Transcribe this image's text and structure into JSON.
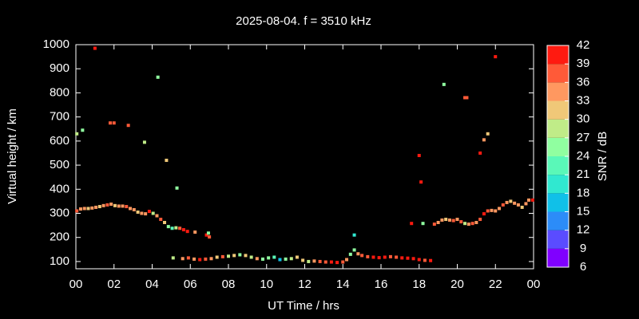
{
  "chart_data": {
    "type": "scatter",
    "title": "2025-08-04. f = 3510 kHz",
    "x_label": "UT Time / hrs",
    "y_label": "Virtual height / km",
    "colorbar_label": "SNR / dB",
    "xlim": [
      0,
      24
    ],
    "xticks": [
      {
        "value": 0,
        "label": "00"
      },
      {
        "value": 2,
        "label": "02"
      },
      {
        "value": 4,
        "label": "04"
      },
      {
        "value": 6,
        "label": "06"
      },
      {
        "value": 8,
        "label": "08"
      },
      10,
      12,
      14,
      16,
      18,
      20,
      22,
      {
        "value": 24,
        "label": "00"
      }
    ],
    "ylim": [
      70,
      1000
    ],
    "yticks": [
      100,
      200,
      300,
      400,
      500,
      600,
      700,
      800,
      900,
      1000
    ],
    "clim": [
      6,
      42
    ],
    "cticks": [
      6,
      9,
      12,
      15,
      18,
      21,
      24,
      27,
      30,
      33,
      36,
      39,
      42
    ],
    "colormap": [
      "#8000ff",
      "#5a4cff",
      "#2c8cf8",
      "#10c0e8",
      "#30e8d0",
      "#5af8b8",
      "#90ffa0",
      "#c0ec88",
      "#f0c878",
      "#ff9860",
      "#ff5a38",
      "#ff1a10"
    ],
    "series": [
      {
        "name": "SNR / dB",
        "x": [
          0.05,
          0.25,
          0.45,
          0.65,
          0.85,
          1.05,
          1.25,
          1.45,
          1.65,
          1.85,
          2.05,
          2.25,
          2.45,
          2.65,
          2.85,
          3.05,
          3.25,
          3.45,
          3.65,
          3.85,
          4.05,
          4.25,
          4.45,
          4.65,
          4.85,
          5.05,
          5.25,
          5.45,
          5.65,
          5.85,
          6.25,
          6.85,
          7.0,
          6.95,
          5.6,
          5.9,
          6.2,
          6.5,
          6.8,
          7.1,
          7.4,
          7.7,
          8.0,
          8.3,
          8.6,
          8.9,
          9.2,
          9.5,
          9.8,
          10.1,
          10.4,
          10.7,
          11.0,
          11.3,
          11.6,
          11.9,
          12.2,
          12.5,
          12.8,
          13.1,
          13.4,
          13.7,
          14.0,
          14.2,
          14.4,
          14.6,
          14.8,
          15.0,
          15.3,
          15.6,
          15.9,
          16.2,
          16.5,
          16.8,
          17.1,
          17.4,
          17.7,
          18.0,
          18.3,
          18.6,
          18.8,
          19.0,
          19.2,
          19.4,
          19.6,
          19.8,
          20.0,
          20.2,
          20.4,
          20.6,
          20.8,
          21.0,
          21.2,
          21.4,
          21.6,
          21.8,
          22.0,
          22.2,
          22.4,
          22.6,
          22.8,
          23.0,
          23.2,
          23.4,
          23.6,
          23.75,
          23.95,
          0.05,
          0.35,
          1.0,
          1.8,
          2.0,
          2.75,
          3.6,
          4.3,
          4.75,
          5.3,
          5.1,
          18.0,
          18.1,
          19.3,
          20.4,
          20.5,
          21.2,
          21.4,
          21.6,
          22.0,
          14.6,
          17.6,
          18.2
        ],
        "values": [
          310,
          318,
          320,
          320,
          322,
          325,
          328,
          332,
          335,
          338,
          332,
          330,
          330,
          328,
          320,
          315,
          305,
          300,
          298,
          308,
          300,
          290,
          275,
          262,
          245,
          238,
          240,
          238,
          232,
          225,
          222,
          210,
          202,
          218,
          112,
          115,
          110,
          108,
          110,
          112,
          118,
          120,
          122,
          125,
          128,
          125,
          118,
          112,
          110,
          115,
          118,
          108,
          110,
          112,
          118,
          105,
          100,
          102,
          100,
          98,
          98,
          96,
          98,
          108,
          130,
          148,
          132,
          125,
          120,
          118,
          116,
          118,
          120,
          118,
          115,
          114,
          112,
          108,
          105,
          104,
          255,
          262,
          272,
          275,
          272,
          270,
          275,
          265,
          258,
          255,
          258,
          262,
          275,
          298,
          310,
          312,
          310,
          320,
          335,
          345,
          350,
          342,
          335,
          325,
          340,
          355,
          355,
          630,
          645,
          985,
          675,
          675,
          665,
          595,
          865,
          520,
          405,
          115,
          540,
          430,
          835,
          780,
          780,
          550,
          605,
          630,
          950,
          210,
          258,
          258
        ],
        "snr": [
          36,
          33,
          33,
          30,
          33,
          33,
          30,
          33,
          36,
          33,
          30,
          33,
          33,
          36,
          33,
          33,
          30,
          33,
          33,
          39,
          27,
          33,
          36,
          30,
          24,
          21,
          27,
          36,
          39,
          39,
          33,
          39,
          36,
          24,
          33,
          36,
          33,
          39,
          36,
          33,
          30,
          36,
          27,
          30,
          24,
          30,
          27,
          33,
          24,
          24,
          21,
          15,
          24,
          27,
          30,
          30,
          27,
          33,
          36,
          36,
          39,
          39,
          36,
          33,
          24,
          24,
          33,
          36,
          36,
          39,
          39,
          39,
          36,
          36,
          39,
          39,
          39,
          39,
          36,
          39,
          36,
          33,
          33,
          30,
          33,
          36,
          33,
          36,
          27,
          33,
          36,
          33,
          36,
          39,
          36,
          33,
          33,
          33,
          36,
          33,
          30,
          33,
          33,
          30,
          33,
          33,
          39,
          27,
          24,
          39,
          36,
          36,
          36,
          27,
          24,
          30,
          24,
          27,
          39,
          39,
          24,
          36,
          36,
          39,
          33,
          30,
          39,
          18,
          39,
          24
        ]
      }
    ]
  }
}
